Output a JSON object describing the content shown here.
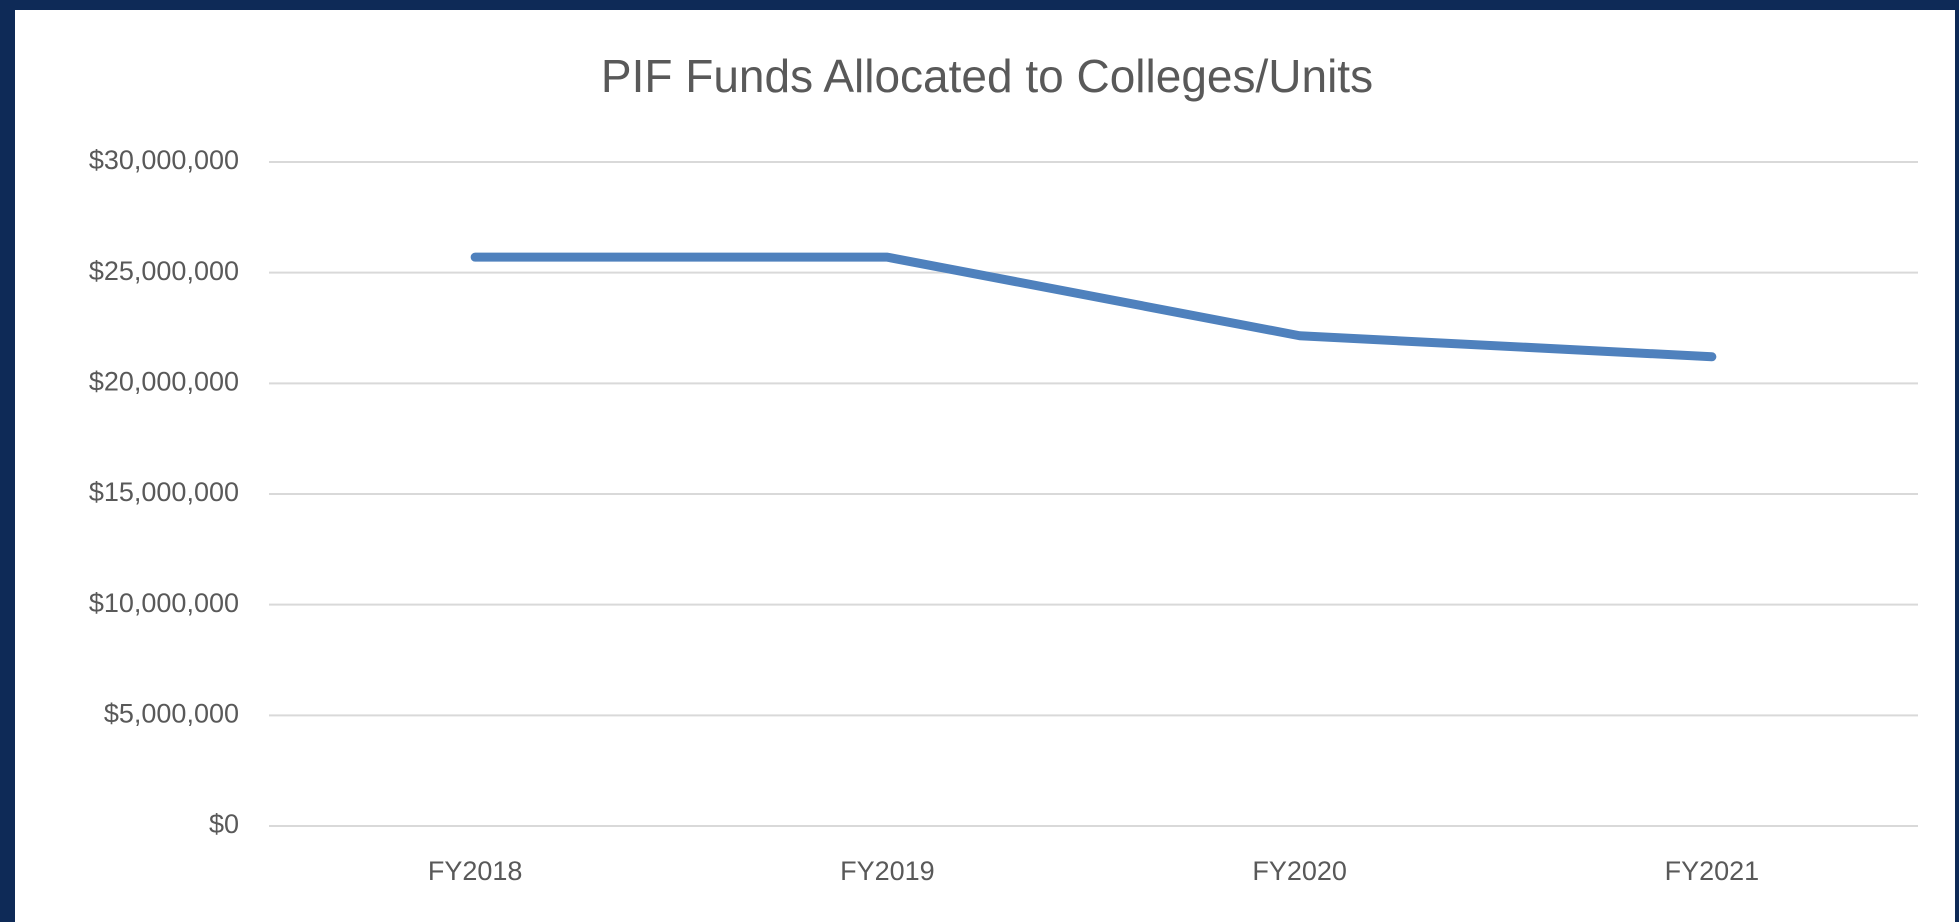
{
  "chart_data": {
    "type": "line",
    "title": "PIF Funds Allocated to Colleges/Units",
    "categories": [
      "FY2018",
      "FY2019",
      "FY2020",
      "FY2021"
    ],
    "series": [
      {
        "name": "PIF Funds",
        "color": "#4f81bd",
        "values": [
          25700000,
          25700000,
          22150000,
          21200000
        ]
      }
    ],
    "ylim": [
      0,
      30000000
    ],
    "yticks": [
      {
        "value": 0,
        "label": "$0"
      },
      {
        "value": 5000000,
        "label": "$5,000,000"
      },
      {
        "value": 10000000,
        "label": "$10,000,000"
      },
      {
        "value": 15000000,
        "label": "$15,000,000"
      },
      {
        "value": 20000000,
        "label": "$20,000,000"
      },
      {
        "value": 25000000,
        "label": "$25,000,000"
      },
      {
        "value": 30000000,
        "label": "$30,000,000"
      }
    ],
    "grid": true
  }
}
